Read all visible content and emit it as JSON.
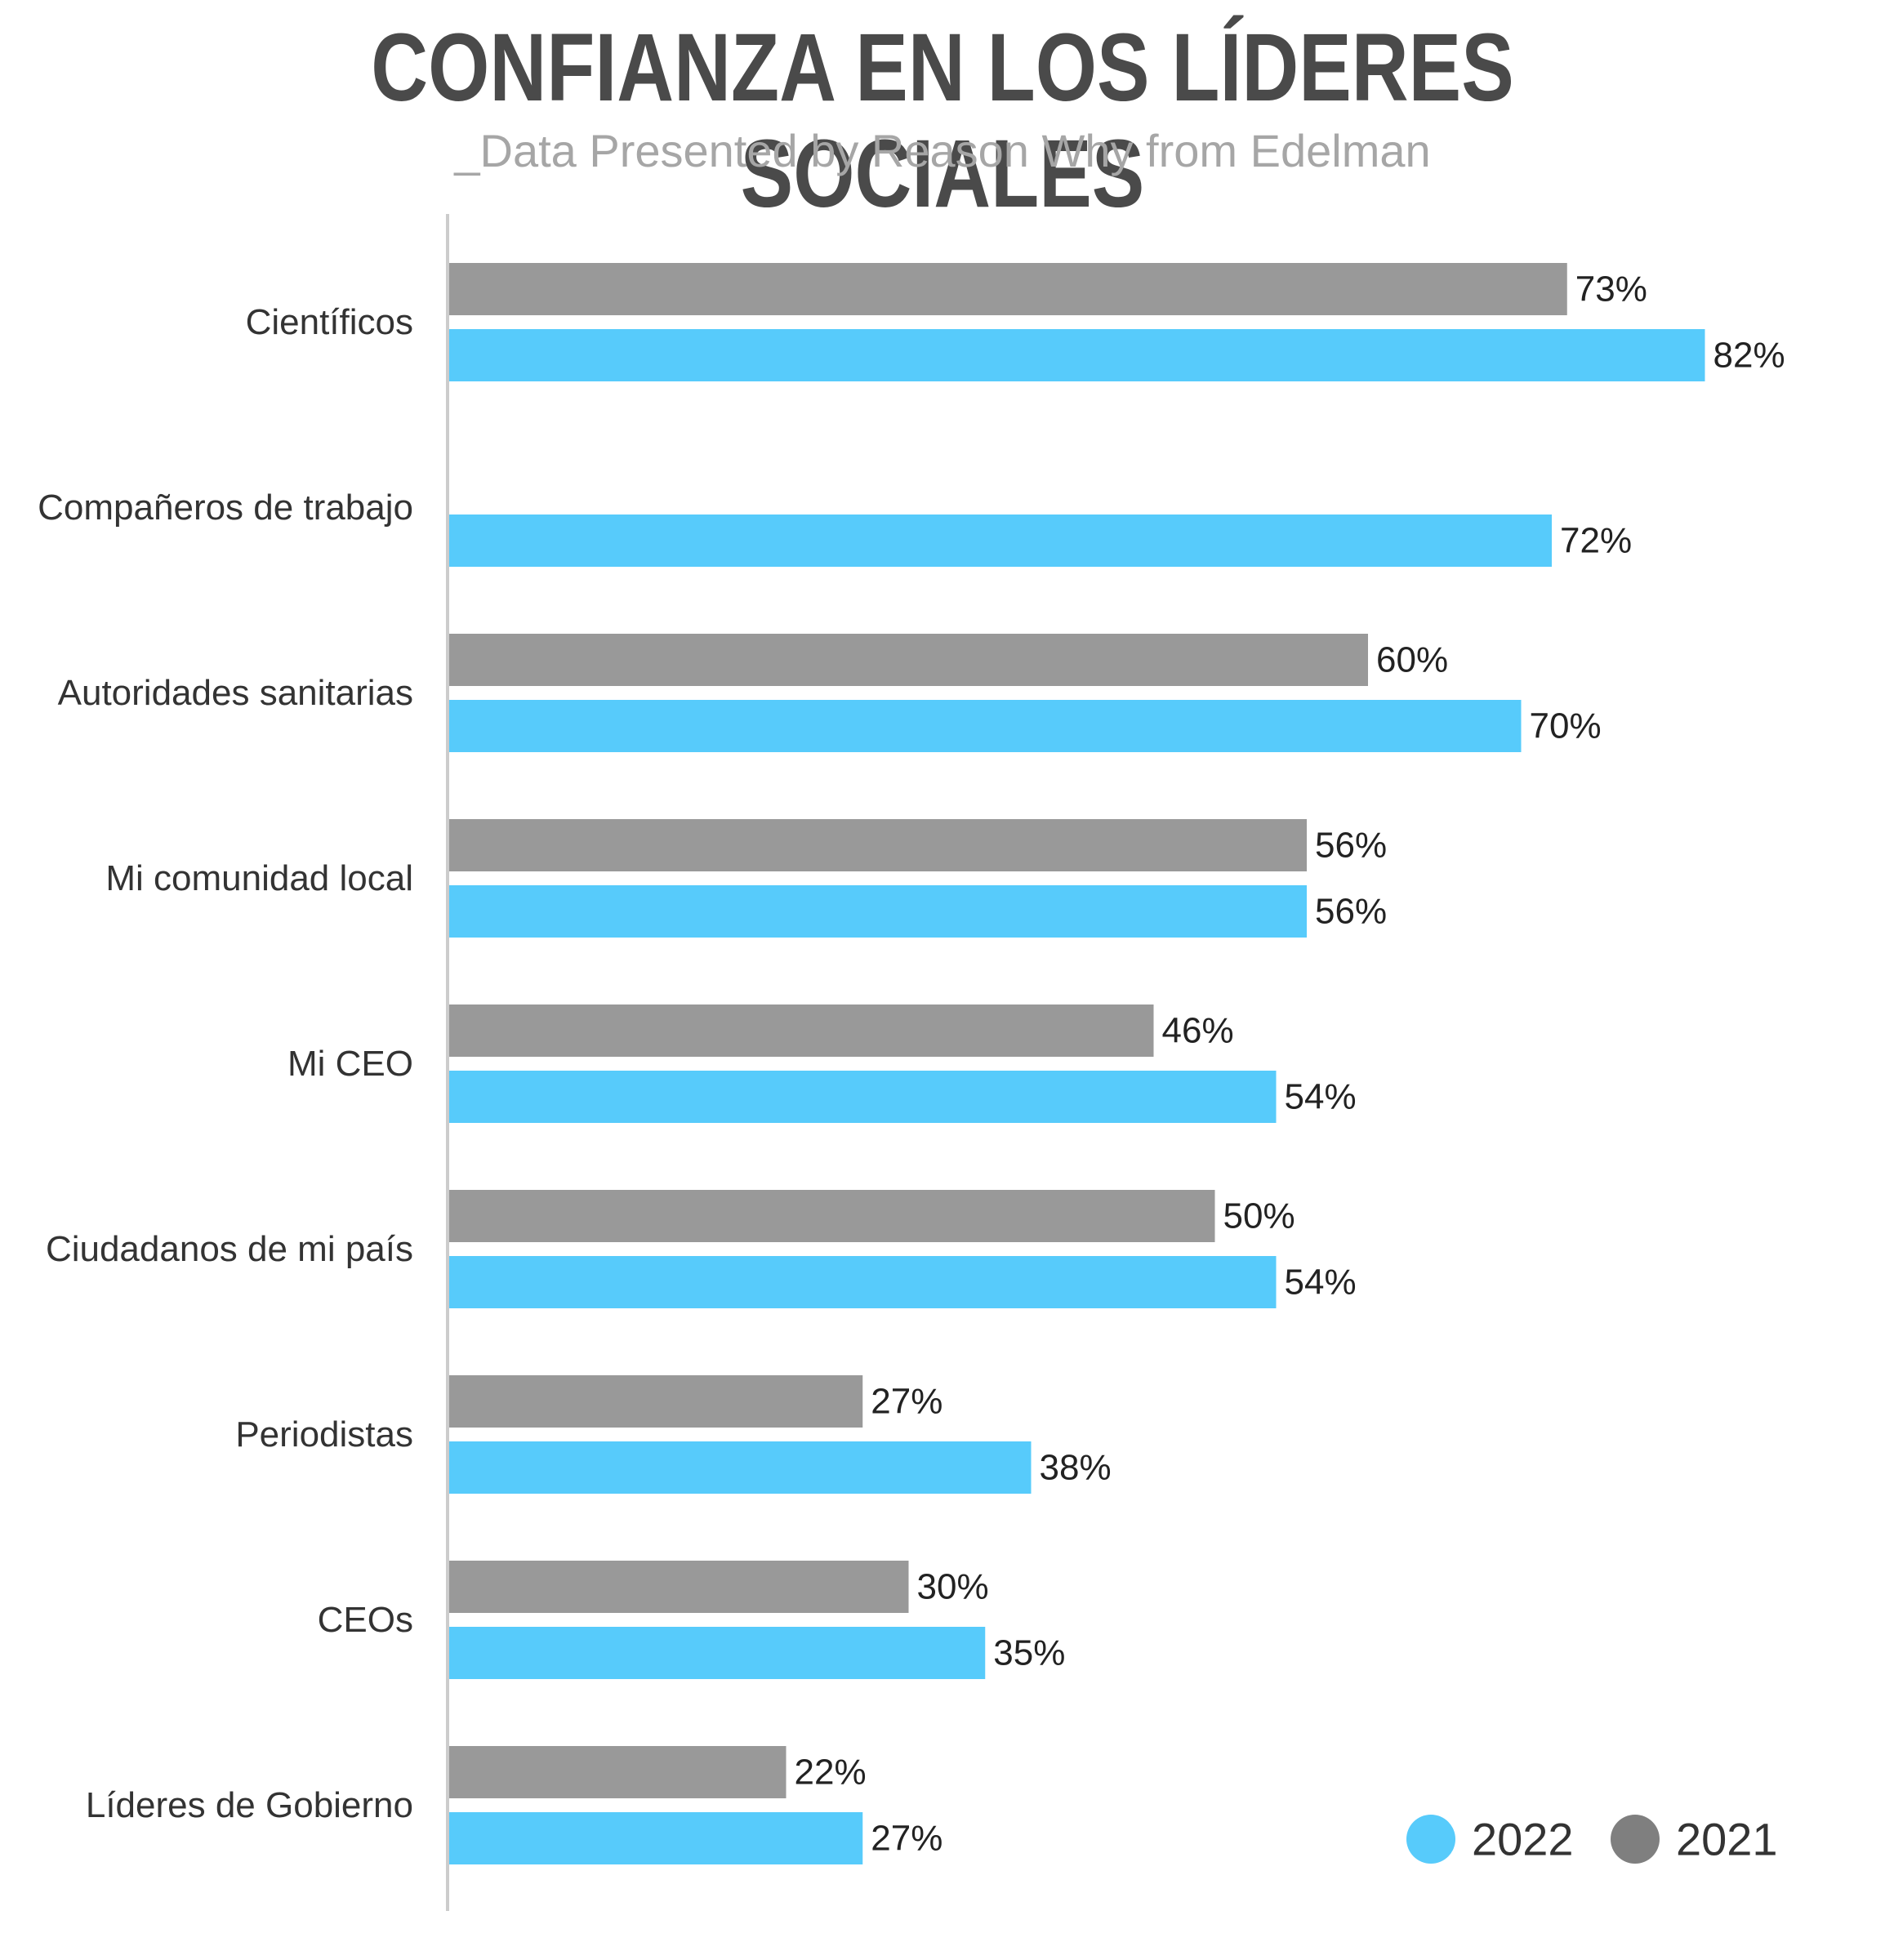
{
  "chart_data": {
    "type": "bar",
    "orientation": "horizontal",
    "title": "CONFIANZA EN LOS LÍDERES SOCIALES",
    "subtitle": "_Data Presented by Reason Why from Edelman",
    "categories": [
      "Científicos",
      "Compañeros de trabajo",
      "Autoridades sanitarias",
      "Mi comunidad local",
      "Mi CEO",
      "Ciudadanos de mi país",
      "Periodistas",
      "CEOs",
      "Líderes de Gobierno"
    ],
    "series": [
      {
        "name": "2021",
        "color": "#999999",
        "values": [
          73,
          null,
          60,
          56,
          46,
          50,
          27,
          30,
          22
        ],
        "labels": [
          "73%",
          "",
          "60%",
          "56%",
          "46%",
          "50%",
          "27%",
          "30%",
          "22%"
        ]
      },
      {
        "name": "2022",
        "color": "#57CBFB",
        "values": [
          82,
          72,
          70,
          56,
          54,
          54,
          38,
          35,
          27
        ],
        "labels": [
          "82%",
          "72%",
          "70%",
          "56%",
          "54%",
          "54%",
          "38%",
          "35%",
          "27%"
        ]
      }
    ],
    "xlim": [
      0,
      100
    ],
    "grid": false,
    "legend": {
      "placement": "bottom-right",
      "entries": [
        {
          "name": "2022",
          "color": "#57CBFB"
        },
        {
          "name": "2021",
          "color": "#7f7f7f"
        }
      ]
    },
    "axis_color": "#cccccc"
  }
}
